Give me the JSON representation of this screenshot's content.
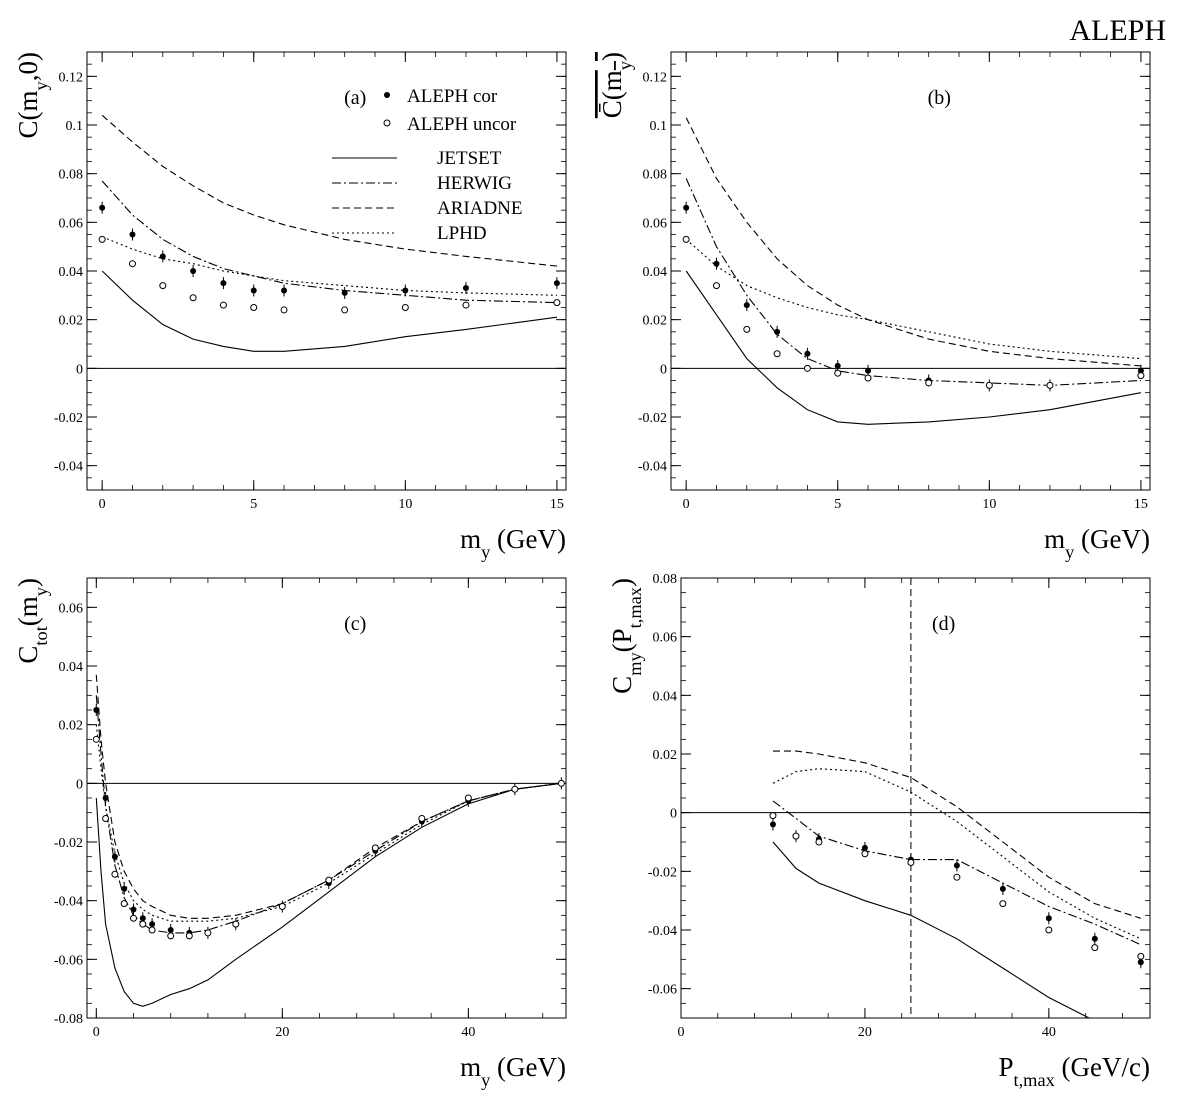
{
  "figure": {
    "header": "ALEPH"
  },
  "styles": {
    "JETSET": "solid",
    "HERWIG": "dashdot",
    "ARIADNE": "dashed",
    "LPHD": "dotted"
  },
  "legend": {
    "markers": [
      {
        "label": "ALEPH cor",
        "marker": "filled"
      },
      {
        "label": "ALEPH uncor",
        "marker": "open"
      }
    ],
    "lines": [
      {
        "label": "JETSET",
        "style": "solid"
      },
      {
        "label": "HERWIG",
        "style": "dashdot"
      },
      {
        "label": "ARIADNE",
        "style": "dashed"
      },
      {
        "label": "LPHD",
        "style": "dotted"
      }
    ]
  },
  "chart_data": [
    {
      "panel": "(a)",
      "type": "line",
      "ylabel": "C(m_y,0)",
      "xlabel": "m_y (GeV)",
      "xlim": [
        -0.5,
        15.3
      ],
      "ylim": [
        -0.05,
        0.13
      ],
      "xticks": [
        0,
        5,
        10,
        15
      ],
      "xtick_labels": [
        "0",
        "5",
        "10",
        "15"
      ],
      "yticks": [
        -0.04,
        -0.02,
        0,
        0.02,
        0.04,
        0.06,
        0.08,
        0.1,
        0.12
      ],
      "ytick_labels": [
        "-0.04",
        "-0.02",
        "0",
        "0.02",
        "0.04",
        "0.06",
        "0.08",
        "0.1",
        "0.12"
      ],
      "zero_line": true,
      "show_legend": true,
      "series": [
        {
          "name": "ALEPH cor",
          "kind": "points",
          "marker": "filled",
          "x": [
            0,
            1,
            2,
            3,
            4,
            5,
            6,
            8,
            10,
            12,
            15
          ],
          "y": [
            0.066,
            0.055,
            0.046,
            0.04,
            0.035,
            0.032,
            0.032,
            0.031,
            0.032,
            0.033,
            0.035
          ]
        },
        {
          "name": "ALEPH uncor",
          "kind": "points",
          "marker": "open",
          "x": [
            0,
            1,
            2,
            3,
            4,
            5,
            6,
            8,
            10,
            12,
            15
          ],
          "y": [
            0.053,
            0.043,
            0.034,
            0.029,
            0.026,
            0.025,
            0.024,
            0.024,
            0.025,
            0.026,
            0.027
          ]
        },
        {
          "name": "JETSET",
          "kind": "line",
          "style": "solid",
          "x": [
            0,
            1,
            2,
            3,
            4,
            5,
            6,
            8,
            10,
            12,
            15
          ],
          "y": [
            0.04,
            0.028,
            0.018,
            0.012,
            0.009,
            0.007,
            0.007,
            0.009,
            0.013,
            0.016,
            0.021
          ]
        },
        {
          "name": "HERWIG",
          "kind": "line",
          "style": "dashdot",
          "x": [
            0,
            1,
            2,
            3,
            4,
            5,
            6,
            8,
            10,
            12,
            15
          ],
          "y": [
            0.077,
            0.063,
            0.053,
            0.046,
            0.041,
            0.038,
            0.035,
            0.032,
            0.03,
            0.028,
            0.027
          ]
        },
        {
          "name": "ARIADNE",
          "kind": "line",
          "style": "dashed",
          "x": [
            0,
            1,
            2,
            3,
            4,
            5,
            6,
            8,
            10,
            12,
            15
          ],
          "y": [
            0.104,
            0.093,
            0.083,
            0.075,
            0.068,
            0.063,
            0.059,
            0.053,
            0.049,
            0.046,
            0.042
          ]
        },
        {
          "name": "LPHD",
          "kind": "line",
          "style": "dotted",
          "x": [
            0,
            1,
            2,
            3,
            4,
            5,
            6,
            8,
            10,
            12,
            15
          ],
          "y": [
            0.054,
            0.049,
            0.045,
            0.043,
            0.04,
            0.038,
            0.036,
            0.034,
            0.032,
            0.031,
            0.03
          ]
        }
      ]
    },
    {
      "panel": "(b)",
      "type": "line",
      "ylabel": "C̄(m_y)",
      "xlabel": "m_y (GeV)",
      "xlim": [
        -0.5,
        15.3
      ],
      "ylim": [
        -0.05,
        0.13
      ],
      "xticks": [
        0,
        5,
        10,
        15
      ],
      "xtick_labels": [
        "0",
        "5",
        "10",
        "15"
      ],
      "yticks": [
        -0.04,
        -0.02,
        0,
        0.02,
        0.04,
        0.06,
        0.08,
        0.1,
        0.12
      ],
      "ytick_labels": [
        "-0.04",
        "-0.02",
        "0",
        "0.02",
        "0.04",
        "0.06",
        "0.08",
        "0.1",
        "0.12"
      ],
      "zero_line": true,
      "show_legend": false,
      "series": [
        {
          "name": "ALEPH cor",
          "kind": "points",
          "marker": "filled",
          "x": [
            0,
            1,
            2,
            3,
            4,
            5,
            6,
            8,
            10,
            12,
            15
          ],
          "y": [
            0.066,
            0.043,
            0.026,
            0.015,
            0.006,
            0.001,
            -0.001,
            -0.005,
            -0.007,
            -0.007,
            -0.001
          ]
        },
        {
          "name": "ALEPH uncor",
          "kind": "points",
          "marker": "open",
          "x": [
            0,
            1,
            2,
            3,
            4,
            5,
            6,
            8,
            10,
            12,
            15
          ],
          "y": [
            0.053,
            0.034,
            0.016,
            0.006,
            0.0,
            -0.002,
            -0.004,
            -0.006,
            -0.007,
            -0.007,
            -0.003
          ]
        },
        {
          "name": "JETSET",
          "kind": "line",
          "style": "solid",
          "x": [
            0,
            1,
            2,
            3,
            4,
            5,
            6,
            8,
            10,
            12,
            15
          ],
          "y": [
            0.04,
            0.022,
            0.004,
            -0.008,
            -0.017,
            -0.022,
            -0.023,
            -0.022,
            -0.02,
            -0.017,
            -0.01
          ]
        },
        {
          "name": "HERWIG",
          "kind": "line",
          "style": "dashdot",
          "x": [
            0,
            1,
            2,
            3,
            4,
            5,
            6,
            8,
            10,
            12,
            15
          ],
          "y": [
            0.078,
            0.05,
            0.03,
            0.014,
            0.004,
            -0.001,
            -0.003,
            -0.005,
            -0.006,
            -0.007,
            -0.005
          ]
        },
        {
          "name": "ARIADNE",
          "kind": "line",
          "style": "dashed",
          "x": [
            0,
            1,
            2,
            3,
            4,
            5,
            6,
            8,
            10,
            12,
            15
          ],
          "y": [
            0.103,
            0.078,
            0.06,
            0.045,
            0.034,
            0.026,
            0.02,
            0.012,
            0.007,
            0.004,
            0.001
          ]
        },
        {
          "name": "LPHD",
          "kind": "line",
          "style": "dotted",
          "x": [
            0,
            1,
            2,
            3,
            4,
            5,
            6,
            8,
            10,
            12,
            15
          ],
          "y": [
            0.053,
            0.042,
            0.034,
            0.029,
            0.025,
            0.022,
            0.02,
            0.015,
            0.01,
            0.007,
            0.004
          ]
        }
      ]
    },
    {
      "panel": "(c)",
      "type": "line",
      "ylabel": "C_tot(m_y)",
      "xlabel": "m_y (GeV)",
      "xlim": [
        -1,
        50.5
      ],
      "ylim": [
        -0.08,
        0.07
      ],
      "xticks": [
        0,
        20,
        40
      ],
      "xtick_labels": [
        "0",
        "20",
        "40"
      ],
      "yticks": [
        -0.08,
        -0.06,
        -0.04,
        -0.02,
        0,
        0.02,
        0.04,
        0.06
      ],
      "ytick_labels": [
        "-0.08",
        "-0.06",
        "-0.04",
        "-0.02",
        "0",
        "0.02",
        "0.04",
        "0.06"
      ],
      "zero_line": true,
      "show_legend": false,
      "series": [
        {
          "name": "ALEPH cor",
          "kind": "points",
          "marker": "filled",
          "x": [
            0,
            1,
            2,
            3,
            4,
            5,
            6,
            8,
            10,
            12,
            15,
            20,
            25,
            30,
            35,
            40,
            45,
            50
          ],
          "y": [
            0.025,
            -0.005,
            -0.025,
            -0.036,
            -0.043,
            -0.046,
            -0.048,
            -0.05,
            -0.051,
            -0.051,
            -0.048,
            -0.042,
            -0.034,
            -0.023,
            -0.013,
            -0.006,
            -0.002,
            0.0
          ]
        },
        {
          "name": "ALEPH uncor",
          "kind": "points",
          "marker": "open",
          "x": [
            0,
            1,
            2,
            3,
            4,
            5,
            6,
            8,
            10,
            12,
            15,
            20,
            25,
            30,
            35,
            40,
            45,
            50
          ],
          "y": [
            0.015,
            -0.012,
            -0.031,
            -0.041,
            -0.046,
            -0.048,
            -0.05,
            -0.052,
            -0.052,
            -0.051,
            -0.048,
            -0.042,
            -0.033,
            -0.022,
            -0.012,
            -0.005,
            -0.002,
            0.0
          ]
        },
        {
          "name": "JETSET",
          "kind": "line",
          "style": "solid",
          "x": [
            0,
            0.5,
            1,
            2,
            3,
            4,
            5,
            6,
            8,
            10,
            12,
            15,
            20,
            25,
            30,
            35,
            40,
            45,
            50
          ],
          "y": [
            -0.005,
            -0.03,
            -0.048,
            -0.063,
            -0.071,
            -0.075,
            -0.076,
            -0.075,
            -0.072,
            -0.07,
            -0.067,
            -0.06,
            -0.049,
            -0.037,
            -0.025,
            -0.015,
            -0.007,
            -0.002,
            0.0
          ]
        },
        {
          "name": "HERWIG",
          "kind": "line",
          "style": "dashdot",
          "x": [
            0,
            0.5,
            1,
            2,
            3,
            4,
            5,
            6,
            8,
            10,
            12,
            15,
            20,
            25,
            30,
            35,
            40,
            45,
            50
          ],
          "y": [
            0.03,
            0.01,
            -0.008,
            -0.028,
            -0.039,
            -0.045,
            -0.048,
            -0.05,
            -0.051,
            -0.051,
            -0.05,
            -0.047,
            -0.041,
            -0.033,
            -0.023,
            -0.013,
            -0.006,
            -0.002,
            0.0
          ]
        },
        {
          "name": "ARIADNE",
          "kind": "line",
          "style": "dashed",
          "x": [
            0,
            0.5,
            1,
            2,
            3,
            4,
            5,
            6,
            8,
            10,
            12,
            15,
            20,
            25,
            30,
            35,
            40,
            45,
            50
          ],
          "y": [
            0.037,
            0.015,
            0.0,
            -0.02,
            -0.03,
            -0.036,
            -0.04,
            -0.042,
            -0.045,
            -0.046,
            -0.046,
            -0.045,
            -0.041,
            -0.033,
            -0.022,
            -0.013,
            -0.006,
            -0.002,
            0.0
          ]
        },
        {
          "name": "LPHD",
          "kind": "line",
          "style": "dotted",
          "x": [
            0,
            0.5,
            1,
            2,
            3,
            4,
            5,
            6,
            8,
            10,
            12,
            15,
            20,
            25,
            30,
            35,
            40,
            45,
            50
          ],
          "y": [
            0.02,
            0.005,
            -0.008,
            -0.024,
            -0.034,
            -0.04,
            -0.043,
            -0.045,
            -0.047,
            -0.047,
            -0.047,
            -0.046,
            -0.042,
            -0.034,
            -0.024,
            -0.014,
            -0.006,
            -0.002,
            0.0
          ]
        }
      ]
    },
    {
      "panel": "(d)",
      "type": "line",
      "ylabel": "C_my(P_t,max)",
      "xlabel": "P_t,max (GeV/c)",
      "xlim": [
        0,
        51
      ],
      "ylim": [
        -0.07,
        0.08
      ],
      "xticks": [
        0,
        20,
        40
      ],
      "xtick_labels": [
        "0",
        "20",
        "40"
      ],
      "yticks": [
        -0.06,
        -0.04,
        -0.02,
        0,
        0.02,
        0.04,
        0.06,
        0.08
      ],
      "ytick_labels": [
        "-0.06",
        "-0.04",
        "-0.02",
        "0",
        "0.02",
        "0.04",
        "0.06",
        "0.08"
      ],
      "zero_line": true,
      "vline": 25,
      "show_legend": false,
      "series": [
        {
          "name": "ALEPH cor",
          "kind": "points",
          "marker": "filled",
          "x": [
            10,
            12.5,
            15,
            20,
            25,
            30,
            35,
            40,
            45,
            50
          ],
          "y": [
            -0.004,
            -0.008,
            -0.009,
            -0.012,
            -0.016,
            -0.018,
            -0.026,
            -0.036,
            -0.043,
            -0.051
          ]
        },
        {
          "name": "ALEPH uncor",
          "kind": "points",
          "marker": "open",
          "x": [
            10,
            12.5,
            15,
            20,
            25,
            30,
            35,
            40,
            45,
            50
          ],
          "y": [
            -0.001,
            -0.008,
            -0.01,
            -0.014,
            -0.017,
            -0.022,
            -0.031,
            -0.04,
            -0.046,
            -0.049
          ]
        },
        {
          "name": "JETSET",
          "kind": "line",
          "style": "solid",
          "x": [
            10,
            12.5,
            15,
            20,
            25,
            30,
            35,
            40,
            45,
            50
          ],
          "y": [
            -0.01,
            -0.019,
            -0.024,
            -0.03,
            -0.035,
            -0.043,
            -0.053,
            -0.063,
            -0.071,
            -0.077
          ]
        },
        {
          "name": "HERWIG",
          "kind": "line",
          "style": "dashdot",
          "x": [
            10,
            12.5,
            15,
            20,
            25,
            30,
            35,
            40,
            45,
            50
          ],
          "y": [
            0.004,
            -0.002,
            -0.008,
            -0.013,
            -0.016,
            -0.016,
            -0.024,
            -0.032,
            -0.038,
            -0.045
          ]
        },
        {
          "name": "ARIADNE",
          "kind": "line",
          "style": "dashed",
          "x": [
            10,
            12.5,
            15,
            20,
            25,
            30,
            35,
            40,
            45,
            50
          ],
          "y": [
            0.021,
            0.021,
            0.02,
            0.017,
            0.012,
            0.002,
            -0.01,
            -0.022,
            -0.031,
            -0.036
          ]
        },
        {
          "name": "LPHD",
          "kind": "line",
          "style": "dotted",
          "x": [
            10,
            12.5,
            15,
            20,
            25,
            30,
            35,
            40,
            45,
            50
          ],
          "y": [
            0.01,
            0.014,
            0.015,
            0.014,
            0.007,
            -0.003,
            -0.015,
            -0.027,
            -0.036,
            -0.043
          ]
        }
      ]
    }
  ]
}
